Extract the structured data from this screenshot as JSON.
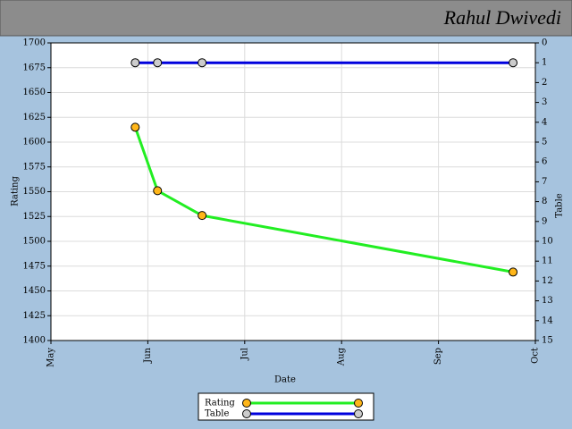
{
  "chart_data": {
    "type": "line",
    "title": "Rahul Dwivedi",
    "x_label": "Date",
    "y_label": "Rating",
    "y2_label": "Table",
    "x": [
      0.87,
      1.1,
      1.56,
      4.77
    ],
    "xlim": [
      0,
      5
    ],
    "xticks": [
      {
        "value": 0,
        "label": "May"
      },
      {
        "value": 1,
        "label": "Jun"
      },
      {
        "value": 2,
        "label": "Jul"
      },
      {
        "value": 3,
        "label": "Aug"
      },
      {
        "value": 4,
        "label": "Sep"
      },
      {
        "value": 5,
        "label": "Oct"
      }
    ],
    "ylim": [
      1400,
      1700
    ],
    "yticks": [
      1400,
      1425,
      1450,
      1475,
      1500,
      1525,
      1550,
      1575,
      1600,
      1625,
      1650,
      1675,
      1700
    ],
    "y2lim": [
      0,
      15
    ],
    "y2_reversed": true,
    "y2ticks": [
      0,
      1,
      2,
      3,
      4,
      5,
      6,
      7,
      8,
      9,
      10,
      11,
      12,
      13,
      14,
      15
    ],
    "grid": true,
    "series": [
      {
        "name": "Rating",
        "color": "#22ee22",
        "marker_color": "#ffb619",
        "values": [
          1615,
          1551,
          1526,
          1469
        ]
      },
      {
        "name": "Table",
        "color": "#0000dd",
        "marker_color": "#cccccc",
        "axis": "y2",
        "values": [
          1,
          1,
          1,
          1
        ]
      }
    ]
  }
}
